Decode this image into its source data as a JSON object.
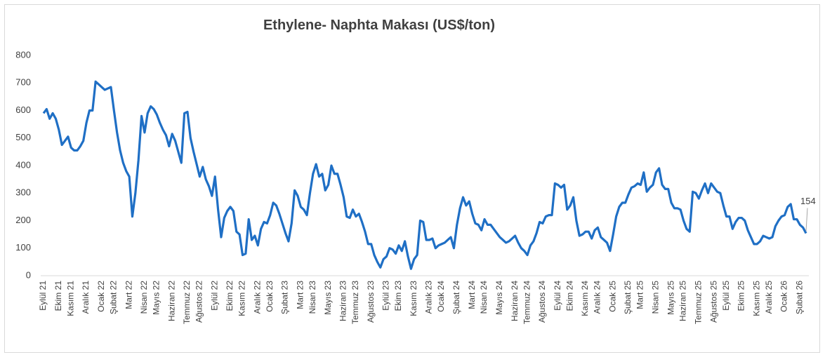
{
  "chart_data": {
    "type": "line",
    "title": "Ethylene- Naphta Makası (US$/ton)",
    "color": "#1f6fc5",
    "ylim": [
      0,
      800
    ],
    "yticks": [
      0,
      100,
      200,
      300,
      400,
      500,
      600,
      700,
      800
    ],
    "grid": false,
    "categories": [
      "Eylül 21",
      null,
      null,
      null,
      null,
      "Ekim 21",
      null,
      null,
      null,
      "Kasım 21",
      null,
      null,
      null,
      null,
      "Aralık 21",
      null,
      null,
      null,
      null,
      "Ocak 22",
      null,
      null,
      null,
      "Şubat 22",
      null,
      null,
      null,
      null,
      "Mart 22",
      null,
      null,
      null,
      null,
      "Nisan 22",
      null,
      null,
      null,
      "Mayıs 22",
      null,
      null,
      null,
      null,
      "Haziran 22",
      null,
      null,
      null,
      null,
      "Temmuz 22",
      null,
      null,
      null,
      "Ağustos 22",
      null,
      null,
      null,
      null,
      "Eylül 22",
      null,
      null,
      null,
      null,
      "Ekim 22",
      null,
      null,
      null,
      "Kasım 22",
      null,
      null,
      null,
      null,
      "Aralık 22",
      null,
      null,
      null,
      "Ocak 23",
      null,
      null,
      null,
      null,
      "Şubat 23",
      null,
      null,
      null,
      null,
      "Mart 23",
      null,
      null,
      null,
      "Nisan 23",
      null,
      null,
      null,
      null,
      "Mayıs 23",
      null,
      null,
      null,
      null,
      "Haziran 23",
      null,
      null,
      null,
      "Temmuz 23",
      null,
      null,
      null,
      null,
      "Ağustos 23",
      null,
      null,
      null,
      null,
      "Eylül 23",
      null,
      null,
      null,
      "Ekim 23",
      null,
      null,
      null,
      null,
      "Kasım 23",
      null,
      null,
      null,
      null,
      "Aralık 23",
      null,
      null,
      null,
      "Ocak 24",
      null,
      null,
      null,
      null,
      "Şubat 24",
      null,
      null,
      null,
      null,
      "Mart 24",
      null,
      null,
      null,
      "Nisan 24",
      null,
      null,
      null,
      null,
      "Mayıs 24",
      null,
      null,
      null,
      null,
      "Haziran 24",
      null,
      null,
      null,
      "Temmuz 24",
      null,
      null,
      null,
      null,
      "Ağustos 24",
      null,
      null,
      null,
      null,
      "Eylül 24",
      null,
      null,
      null,
      "Ekim 24",
      null,
      null,
      null,
      null,
      "Kasım 24",
      null,
      null,
      null,
      "Aralık 24",
      null,
      null,
      null,
      null,
      "Ocak 25",
      null,
      null,
      null,
      null,
      "Şubat 25",
      null,
      null,
      null,
      "Mart 25",
      null,
      null,
      null,
      null,
      "Nisan 25",
      null,
      null,
      null,
      null,
      "Mayıs 25",
      null,
      null,
      null,
      "Haziran 25",
      null,
      null,
      null,
      null,
      "Temmuz 25",
      null,
      null,
      null,
      null,
      "Ağustos 25",
      null,
      null,
      null,
      "Eylül 25",
      null,
      null,
      null,
      null,
      "Ekim 25",
      null,
      null,
      null,
      null,
      "Kasım 25",
      null,
      null,
      null,
      "Aralık 25",
      null,
      null,
      null,
      null,
      "Ocak 26",
      null,
      null,
      null,
      null,
      "Şubat 26",
      null,
      null
    ],
    "values": [
      590,
      605,
      570,
      590,
      570,
      530,
      475,
      490,
      505,
      465,
      455,
      455,
      470,
      490,
      555,
      600,
      600,
      705,
      695,
      685,
      675,
      680,
      685,
      600,
      520,
      455,
      410,
      380,
      360,
      215,
      300,
      420,
      580,
      520,
      590,
      615,
      605,
      585,
      555,
      530,
      510,
      470,
      515,
      490,
      450,
      410,
      590,
      595,
      500,
      450,
      405,
      360,
      395,
      350,
      325,
      290,
      360,
      240,
      140,
      210,
      235,
      250,
      235,
      160,
      150,
      75,
      80,
      205,
      130,
      145,
      110,
      170,
      195,
      190,
      220,
      265,
      255,
      225,
      190,
      155,
      125,
      190,
      310,
      290,
      250,
      240,
      220,
      300,
      370,
      405,
      360,
      370,
      310,
      330,
      400,
      370,
      370,
      330,
      285,
      215,
      210,
      240,
      215,
      225,
      195,
      160,
      115,
      115,
      75,
      50,
      30,
      60,
      70,
      100,
      95,
      80,
      110,
      90,
      125,
      70,
      25,
      60,
      75,
      200,
      195,
      130,
      130,
      135,
      100,
      110,
      115,
      120,
      130,
      140,
      100,
      185,
      245,
      285,
      255,
      270,
      225,
      190,
      185,
      165,
      205,
      185,
      185,
      170,
      155,
      140,
      130,
      120,
      125,
      135,
      145,
      120,
      100,
      90,
      75,
      110,
      125,
      155,
      195,
      190,
      215,
      220,
      220,
      335,
      330,
      320,
      330,
      240,
      255,
      285,
      200,
      145,
      150,
      160,
      160,
      135,
      165,
      175,
      140,
      130,
      120,
      90,
      150,
      215,
      250,
      265,
      265,
      295,
      320,
      325,
      335,
      330,
      375,
      305,
      320,
      330,
      375,
      390,
      330,
      315,
      315,
      265,
      245,
      245,
      240,
      200,
      170,
      160,
      305,
      300,
      280,
      310,
      335,
      300,
      335,
      320,
      305,
      300,
      255,
      215,
      215,
      170,
      195,
      210,
      210,
      200,
      165,
      140,
      115,
      115,
      125,
      145,
      140,
      135,
      140,
      180,
      200,
      215,
      220,
      250,
      260,
      205,
      205,
      185,
      175,
      154
    ]
  }
}
